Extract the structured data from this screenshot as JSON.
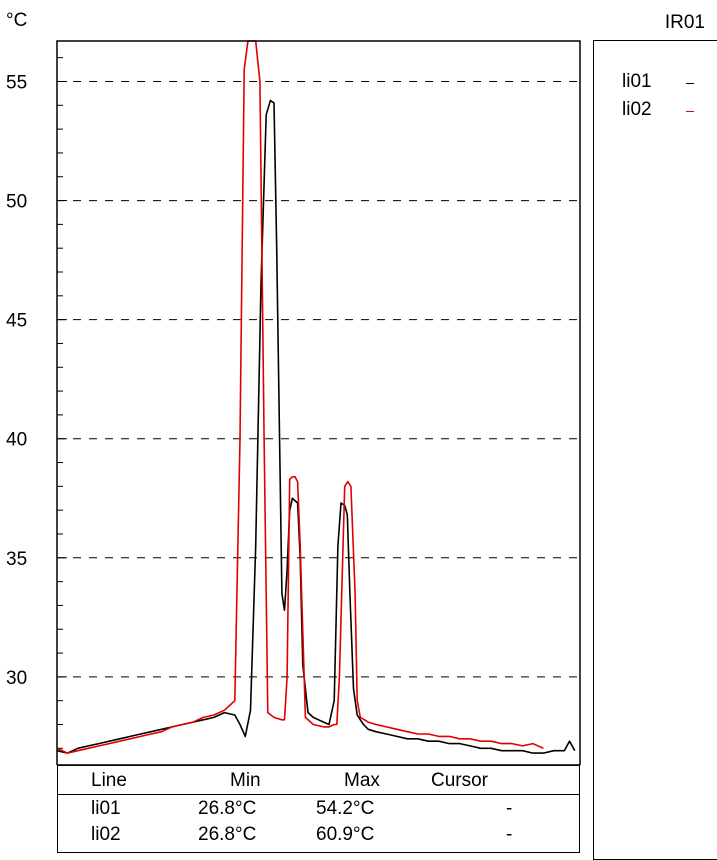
{
  "header": {
    "unit": "°C",
    "title": "IR01"
  },
  "chart_data": {
    "type": "line",
    "ylim": [
      26.3,
      56.7
    ],
    "xlim": [
      0,
      100
    ],
    "yticks": [
      30,
      35,
      40,
      45,
      50,
      55
    ],
    "grid": true,
    "series": [
      {
        "name": "li01",
        "color": "#000000",
        "x": [
          0,
          2,
          4,
          6,
          8,
          10,
          12,
          14,
          16,
          18,
          20,
          22,
          24,
          26,
          28,
          30,
          32,
          34,
          35,
          36,
          37,
          38,
          39,
          40,
          40.8,
          41.5,
          42,
          43,
          43.5,
          44,
          44.5,
          45,
          45.5,
          46,
          46.5,
          47,
          48,
          49,
          50,
          51,
          52,
          53,
          53.7,
          54.3,
          55,
          55.5,
          56,
          56.7,
          57.4,
          58,
          58.6,
          59.5,
          61,
          63,
          65,
          67,
          69,
          71,
          73,
          75,
          77,
          79,
          81,
          83,
          85,
          87,
          89,
          91,
          93,
          95,
          97,
          98,
          99
        ],
        "y": [
          26.9,
          26.8,
          27.0,
          27.1,
          27.2,
          27.3,
          27.4,
          27.5,
          27.6,
          27.7,
          27.8,
          27.9,
          28.0,
          28.1,
          28.2,
          28.3,
          28.5,
          28.4,
          28.0,
          27.5,
          28.6,
          35.5,
          46.5,
          53.6,
          54.2,
          54.1,
          48.0,
          33.5,
          32.8,
          34.5,
          37.0,
          37.5,
          37.4,
          37.3,
          35.0,
          30.5,
          28.5,
          28.3,
          28.2,
          28.1,
          28.0,
          29.0,
          35.5,
          37.3,
          37.2,
          36.8,
          33.5,
          29.5,
          28.4,
          28.2,
          28.0,
          27.8,
          27.7,
          27.6,
          27.5,
          27.4,
          27.4,
          27.3,
          27.3,
          27.2,
          27.2,
          27.1,
          27.0,
          27.0,
          26.9,
          26.9,
          26.9,
          26.8,
          26.8,
          26.9,
          26.9,
          27.3,
          26.9
        ]
      },
      {
        "name": "li02",
        "color": "#e00000",
        "x": [
          0,
          2,
          4,
          6,
          8,
          10,
          12,
          14,
          16,
          18,
          20,
          22,
          24,
          26,
          28,
          30,
          32,
          33,
          34,
          35,
          35.8,
          36.5,
          37,
          37.5,
          38,
          38.8,
          39.6,
          40.3,
          41.5,
          43,
          43.5,
          44,
          44.5,
          45,
          45.5,
          46,
          46.5,
          47.5,
          49,
          51,
          52,
          53,
          53.5,
          54,
          55,
          55.6,
          56.2,
          57,
          57.4,
          58,
          58.8,
          59.5,
          61,
          63,
          65,
          67,
          69,
          71,
          73,
          75,
          77,
          79,
          81,
          83,
          85,
          87,
          89,
          91,
          93
        ],
        "y": [
          27.0,
          26.8,
          26.9,
          27.0,
          27.1,
          27.2,
          27.3,
          27.4,
          27.5,
          27.6,
          27.7,
          27.9,
          28.0,
          28.1,
          28.3,
          28.4,
          28.6,
          28.8,
          29.0,
          40.0,
          55.5,
          56.7,
          56.7,
          56.7,
          56.7,
          55.0,
          40.0,
          28.5,
          28.3,
          28.2,
          28.2,
          30.0,
          38.3,
          38.4,
          38.4,
          38.2,
          35.5,
          28.3,
          28.0,
          27.9,
          27.9,
          28.0,
          28.0,
          30.0,
          38.0,
          38.2,
          38.0,
          33.5,
          29.0,
          28.3,
          28.2,
          28.1,
          28.0,
          27.9,
          27.8,
          27.7,
          27.6,
          27.6,
          27.5,
          27.5,
          27.4,
          27.4,
          27.3,
          27.3,
          27.2,
          27.2,
          27.1,
          27.2,
          27.0
        ]
      }
    ]
  },
  "table": {
    "headers": [
      "Line",
      "Min",
      "Max",
      "Cursor"
    ],
    "rows": [
      {
        "line": "li01",
        "min": "26.8°C",
        "max": "54.2°C",
        "cursor": "-"
      },
      {
        "line": "li02",
        "min": "26.8°C",
        "max": "60.9°C",
        "cursor": "-"
      }
    ]
  },
  "legend": {
    "items": [
      {
        "label": "li01",
        "mark": "-",
        "color": "#000000"
      },
      {
        "label": "li02",
        "mark": "-",
        "color": "#e00000"
      }
    ]
  }
}
